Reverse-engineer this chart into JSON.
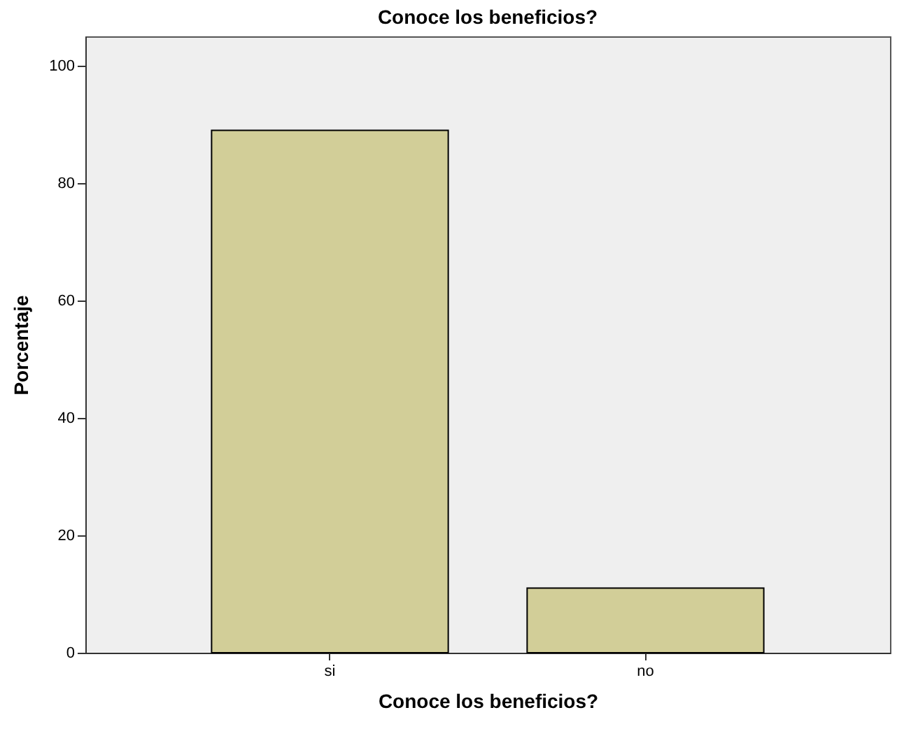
{
  "chart_data": {
    "type": "bar",
    "title": "Conoce los beneficios?",
    "xlabel": "Conoce los beneficios?",
    "ylabel": "Porcentaje",
    "categories": [
      "si",
      "no"
    ],
    "values": [
      89,
      11
    ],
    "color": "#d2ce98",
    "ylim": [
      0,
      105
    ],
    "yticks": [
      0,
      20,
      40,
      60,
      80,
      100
    ],
    "grid": false
  }
}
